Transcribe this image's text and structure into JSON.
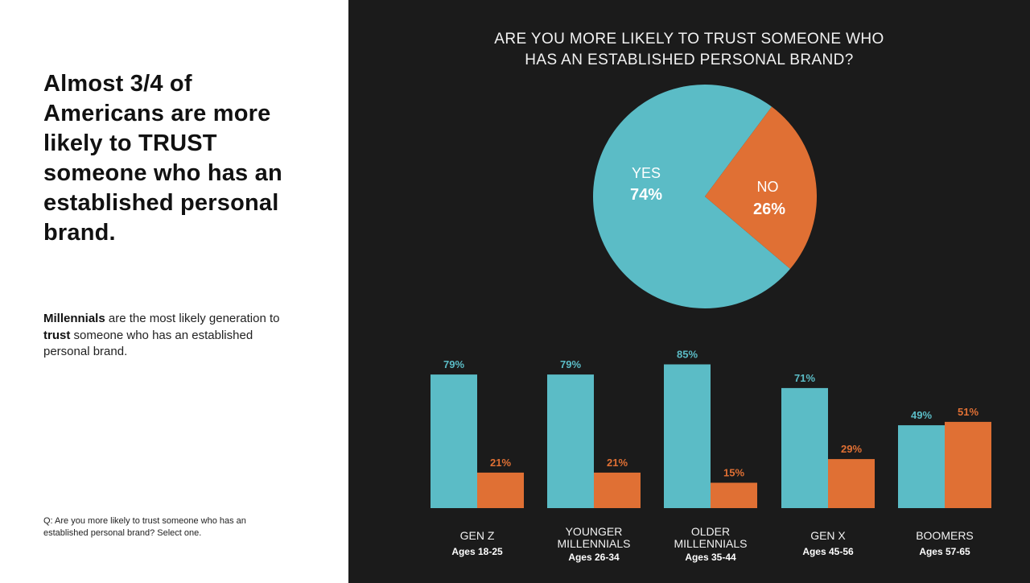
{
  "headline": "Almost 3/4 of Americans are more likely to TRUST someone who has an established personal brand.",
  "subtext": {
    "part1": "Millennials",
    "part2": " are the most likely generation to ",
    "part3": "trust",
    "part4": " someone who has an established personal brand."
  },
  "footnote": "Q: Are you more likely to trust someone who has an established personal brand? Select one.",
  "colors": {
    "yes": "#5bbcc6",
    "no": "#e07034",
    "background_dark": "#1b1b1b"
  },
  "chart_data": [
    {
      "type": "pie",
      "title": "ARE YOU MORE LIKELY TO TRUST SOMEONE WHO HAS AN ESTABLISHED PERSONAL BRAND?",
      "slices": [
        {
          "label": "YES",
          "value": 74,
          "display": "74%"
        },
        {
          "label": "NO",
          "value": 26,
          "display": "26%"
        }
      ]
    },
    {
      "type": "bar",
      "categories": [
        {
          "name_lines": [
            "GEN Z"
          ],
          "ages": "Ages 18-25"
        },
        {
          "name_lines": [
            "YOUNGER",
            "MILLENNIALS"
          ],
          "ages": "Ages 26-34"
        },
        {
          "name_lines": [
            "OLDER",
            "MILLENNIALS"
          ],
          "ages": "Ages 35-44"
        },
        {
          "name_lines": [
            "GEN X"
          ],
          "ages": "Ages 45-56"
        },
        {
          "name_lines": [
            "BOOMERS"
          ],
          "ages": "Ages 57-65"
        }
      ],
      "series": [
        {
          "values": [
            79,
            79,
            85,
            71,
            49
          ],
          "labels": [
            "79%",
            "79%",
            "85%",
            "71%",
            "49%"
          ]
        },
        {
          "values": [
            21,
            21,
            15,
            29,
            51
          ],
          "labels": [
            "21%",
            "21%",
            "15%",
            "29%",
            "51%"
          ]
        }
      ],
      "ylim": [
        0,
        100
      ]
    }
  ]
}
